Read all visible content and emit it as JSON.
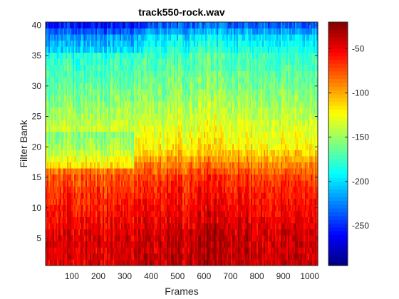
{
  "chart_data": {
    "type": "heatmap",
    "title": "track550-rock.wav",
    "xlabel": "Frames",
    "ylabel": "Filter Bank",
    "xlim": [
      0.5,
      1030.5
    ],
    "ylim": [
      0.5,
      40.5
    ],
    "x_ticks": [
      100,
      200,
      300,
      400,
      500,
      600,
      700,
      800,
      900,
      1000
    ],
    "y_ticks": [
      5,
      10,
      15,
      20,
      25,
      30,
      35,
      40
    ],
    "colormap": "jet",
    "colorbar": {
      "clim": [
        -295,
        -20
      ],
      "ticks": [
        -50,
        -100,
        -150,
        -200,
        -250
      ]
    },
    "grid": false,
    "filter_bank_profile": {
      "bank_index": [
        1,
        5,
        10,
        15,
        17,
        20,
        25,
        30,
        35,
        38,
        40
      ],
      "approx_db_value": [
        -45,
        -45,
        -60,
        -75,
        -95,
        -125,
        -145,
        -165,
        -180,
        -205,
        -240
      ]
    }
  }
}
